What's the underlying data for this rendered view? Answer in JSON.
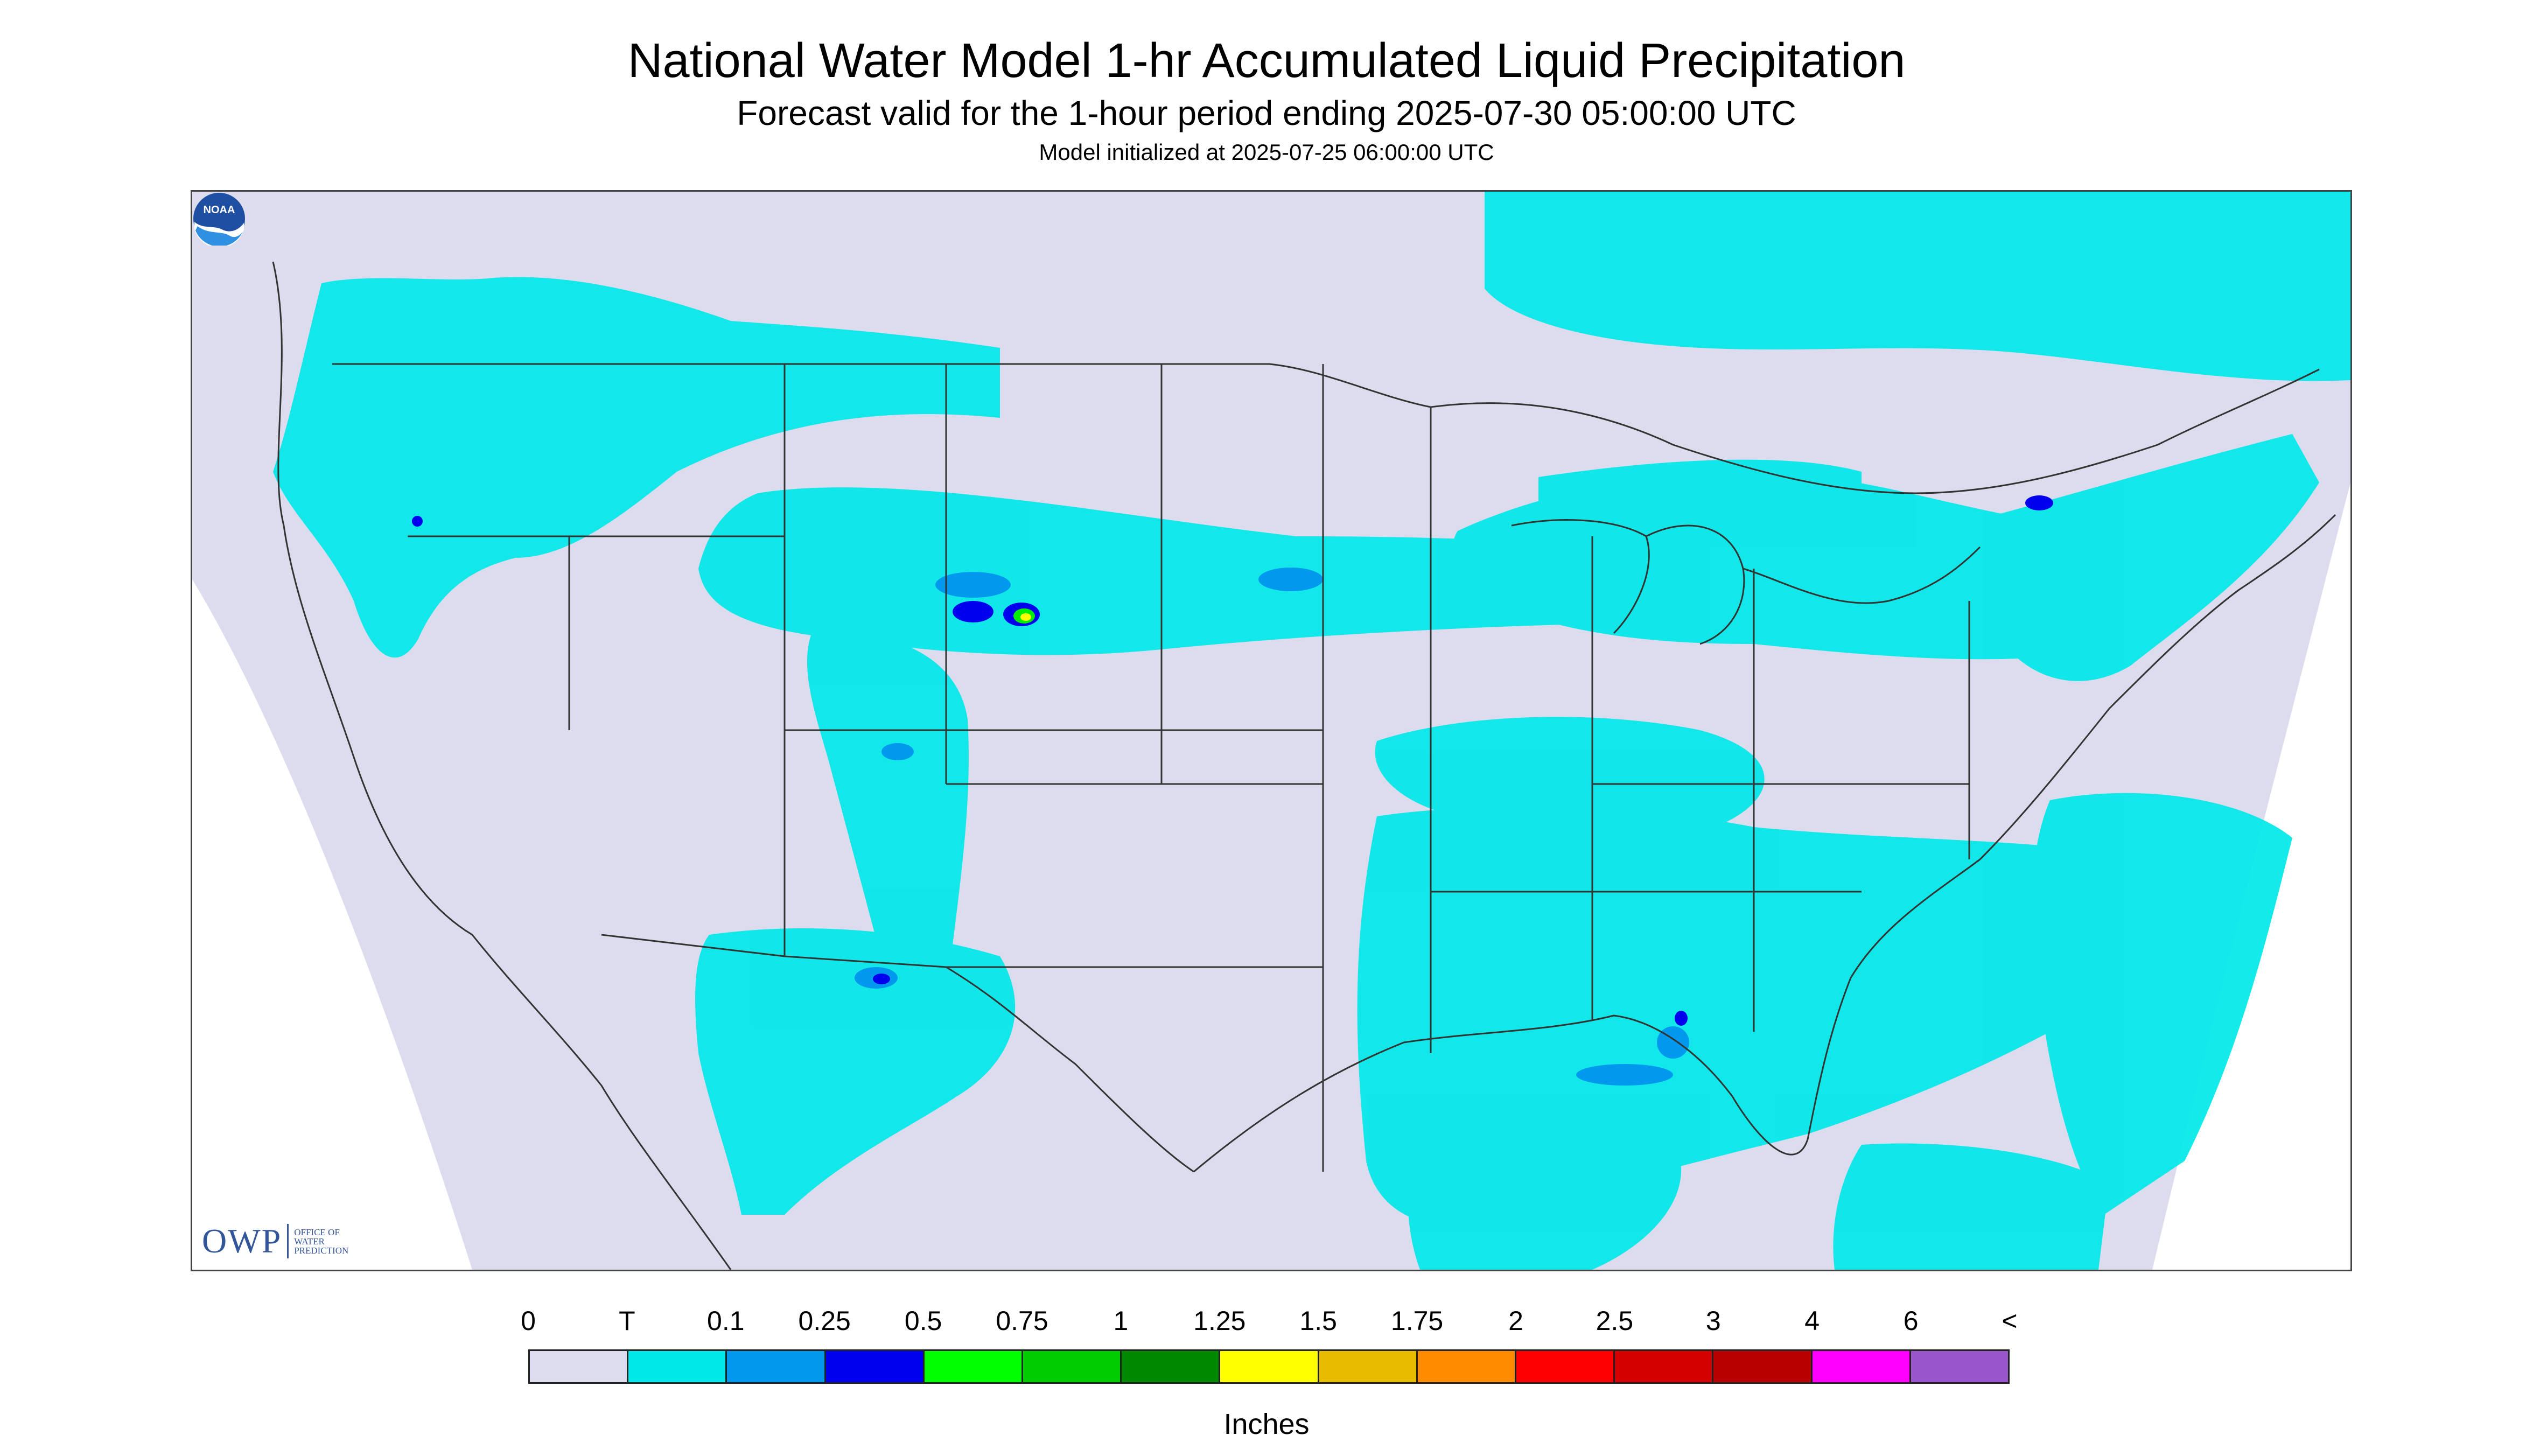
{
  "header": {
    "title": "National Water Model 1-hr Accumulated Liquid Precipitation",
    "subtitle": "Forecast valid for the 1-hour period ending 2025-07-30 05:00:00 UTC",
    "init": "Model initialized at 2025-07-25 06:00:00 UTC"
  },
  "map": {
    "background_color": "#dcdcee",
    "trace_color": "#00e8e8",
    "light_color": "#0099ee",
    "med_color": "#0000ee",
    "heavy_color": "#00ee00",
    "yellow_color": "#ffff00",
    "icons": [
      "owp-logo",
      "noaa-logo"
    ]
  },
  "logos": {
    "owp_mark": "OWP",
    "owp_line1": "OFFICE OF",
    "owp_line2": "WATER",
    "owp_line3": "PREDICTION",
    "noaa_text": "NOAA"
  },
  "legend": {
    "labels": [
      "0",
      "T",
      "0.1",
      "0.25",
      "0.5",
      "0.75",
      "1",
      "1.25",
      "1.5",
      "1.75",
      "2",
      "2.5",
      "3",
      "4",
      "6",
      "<"
    ],
    "colors": [
      "#dcdcee",
      "#00e8e8",
      "#0099ee",
      "#0000ee",
      "#00ff00",
      "#00cc00",
      "#008800",
      "#ffff00",
      "#e6bb00",
      "#ff8c00",
      "#ff0000",
      "#d40000",
      "#b80000",
      "#ff00ff",
      "#9955cc"
    ],
    "units": "Inches"
  }
}
